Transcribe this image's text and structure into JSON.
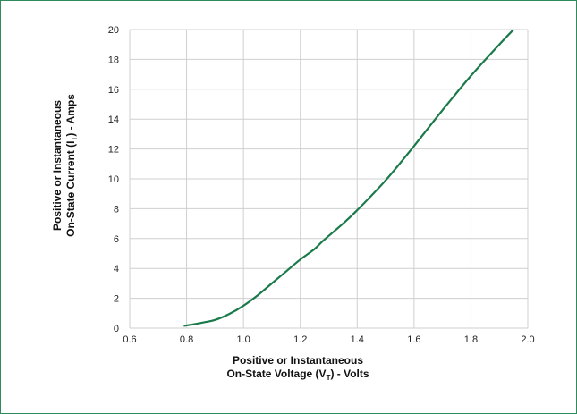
{
  "chart_data": {
    "type": "line",
    "xlabel_line1": "Positive or Instantaneous",
    "xlabel_line2_pre": "On-State Voltage (V",
    "xlabel_line2_sub": "T",
    "xlabel_line2_post": ") - Volts",
    "ylabel_line1": "Positive or Instantaneous",
    "ylabel_line2_pre": "On-State Current (I",
    "ylabel_line2_sub": "T",
    "ylabel_line2_post": ") - Amps",
    "xlim": [
      0.6,
      2.0
    ],
    "ylim": [
      0,
      20
    ],
    "x_ticks": [
      "0.6",
      "0.8",
      "1.0",
      "1.2",
      "1.4",
      "1.6",
      "1.8",
      "2.0"
    ],
    "y_ticks": [
      "0",
      "2",
      "4",
      "6",
      "8",
      "10",
      "12",
      "14",
      "16",
      "18",
      "20"
    ],
    "grid": true,
    "line_color": "#1a7a4a",
    "frame_color": "#2f8a5c",
    "series": [
      {
        "x": [
          0.79,
          0.85,
          0.9,
          0.95,
          1.0,
          1.05,
          1.1,
          1.15,
          1.2,
          1.25,
          1.28,
          1.35,
          1.4,
          1.5,
          1.6,
          1.7,
          1.8,
          1.9,
          1.95
        ],
        "y": [
          0.15,
          0.35,
          0.55,
          0.95,
          1.5,
          2.2,
          3.0,
          3.8,
          4.6,
          5.3,
          5.85,
          7.0,
          7.9,
          9.9,
          12.2,
          14.6,
          16.9,
          19.0,
          20.0
        ]
      }
    ]
  }
}
